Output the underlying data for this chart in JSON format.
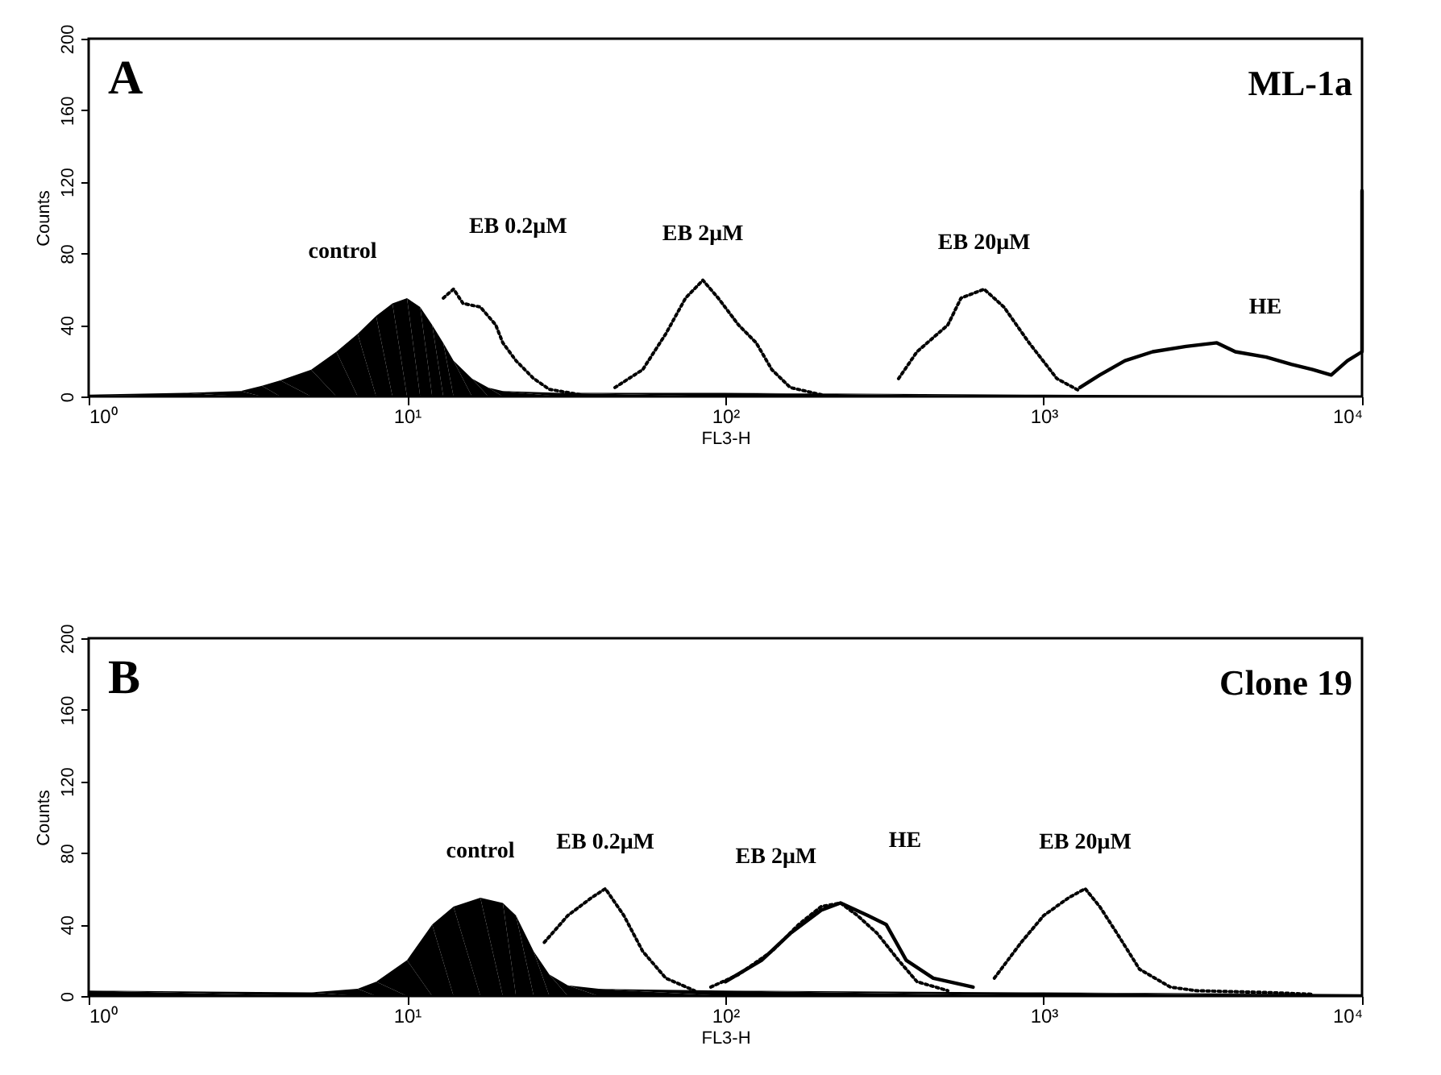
{
  "chart_data": [
    {
      "type": "area",
      "annotations": [
        "A",
        "ML-1a"
      ],
      "xlabel": "FL3-H",
      "ylabel": "Counts",
      "log": "x",
      "grid": false,
      "xlim": [
        1,
        10000
      ],
      "xticks": [
        {
          "value": 1,
          "label": "10⁰"
        },
        {
          "value": 10,
          "label": "10¹"
        },
        {
          "value": 100,
          "label": "10²"
        },
        {
          "value": 1000,
          "label": "10³"
        },
        {
          "value": 10000,
          "label": "10⁴"
        }
      ],
      "ylim": [
        0,
        200
      ],
      "yticks": [
        0,
        40,
        80,
        120,
        160,
        200
      ],
      "series": [
        {
          "name": "control",
          "color": "#000000",
          "x": [
            1,
            2,
            3,
            3.5,
            4,
            5,
            6,
            7,
            8,
            9,
            10,
            11,
            12,
            13,
            14,
            16,
            18,
            20,
            30,
            100,
            1000,
            10000
          ],
          "values": [
            1,
            2,
            3,
            6,
            9,
            15,
            25,
            35,
            45,
            52,
            55,
            50,
            40,
            30,
            20,
            10,
            5,
            3,
            2,
            2,
            1,
            0
          ]
        },
        {
          "name": "EB 0.2μM",
          "type": "line",
          "line_style": "dotted",
          "color": "#000000",
          "x": [
            13,
            14,
            15,
            17,
            19,
            20,
            22,
            25,
            28,
            35
          ],
          "values": [
            55,
            60,
            52,
            50,
            40,
            30,
            20,
            10,
            4,
            1
          ]
        },
        {
          "name": "EB 2μM",
          "type": "line",
          "line_style": "dotted",
          "color": "#000000",
          "x": [
            45,
            55,
            65,
            75,
            85,
            95,
            110,
            125,
            140,
            160,
            200
          ],
          "values": [
            5,
            15,
            35,
            55,
            65,
            55,
            40,
            30,
            15,
            5,
            1
          ]
        },
        {
          "name": "EB 20μM",
          "type": "line",
          "line_style": "dotted",
          "color": "#000000",
          "x": [
            350,
            400,
            500,
            550,
            650,
            750,
            900,
            1100,
            1300
          ],
          "values": [
            10,
            25,
            40,
            55,
            60,
            50,
            30,
            10,
            3
          ]
        },
        {
          "name": "HE",
          "type": "line",
          "line_style": "solid",
          "color": "#000000",
          "x": [
            1300,
            1500,
            1800,
            2200,
            2800,
            3500,
            4000,
            5000,
            6000,
            7000,
            8000,
            9000,
            10000,
            10000
          ],
          "values": [
            5,
            12,
            20,
            25,
            28,
            30,
            25,
            22,
            18,
            15,
            12,
            20,
            25,
            115
          ]
        }
      ]
    },
    {
      "type": "area",
      "annotations": [
        "B",
        "Clone 19"
      ],
      "xlabel": "FL3-H",
      "ylabel": "Counts",
      "log": "x",
      "grid": false,
      "xlim": [
        1,
        10000
      ],
      "xticks": [
        {
          "value": 1,
          "label": "10⁰"
        },
        {
          "value": 10,
          "label": "10¹"
        },
        {
          "value": 100,
          "label": "10²"
        },
        {
          "value": 1000,
          "label": "10³"
        },
        {
          "value": 10000,
          "label": "10⁴"
        }
      ],
      "ylim": [
        0,
        200
      ],
      "yticks": [
        0,
        40,
        80,
        120,
        160,
        200
      ],
      "series": [
        {
          "name": "control",
          "color": "#000000",
          "x": [
            1,
            5,
            7,
            8,
            10,
            12,
            14,
            17,
            20,
            22,
            25,
            28,
            32,
            40,
            100,
            1000,
            10000
          ],
          "values": [
            3,
            2,
            4,
            8,
            20,
            40,
            50,
            55,
            52,
            45,
            25,
            12,
            6,
            4,
            3,
            2,
            1
          ]
        },
        {
          "name": "EB 0.2μM",
          "type": "line",
          "line_style": "dotted",
          "color": "#000000",
          "x": [
            27,
            32,
            38,
            42,
            48,
            55,
            65,
            80
          ],
          "values": [
            30,
            45,
            55,
            60,
            45,
            25,
            10,
            3
          ]
        },
        {
          "name": "EB 2μM",
          "type": "line",
          "line_style": "dotted",
          "color": "#000000",
          "x": [
            90,
            110,
            140,
            170,
            200,
            230,
            260,
            300,
            350,
            400,
            500
          ],
          "values": [
            5,
            12,
            25,
            40,
            50,
            52,
            45,
            35,
            20,
            8,
            3
          ]
        },
        {
          "name": "HE",
          "type": "line",
          "line_style": "solid",
          "color": "#000000",
          "x": [
            100,
            130,
            160,
            200,
            230,
            280,
            320,
            370,
            450,
            600
          ],
          "values": [
            8,
            20,
            35,
            48,
            52,
            45,
            40,
            20,
            10,
            5
          ]
        },
        {
          "name": "EB 20μM",
          "type": "line",
          "line_style": "dotted",
          "color": "#000000",
          "x": [
            700,
            850,
            1000,
            1200,
            1350,
            1500,
            1700,
            2000,
            2500,
            3000,
            5000,
            7000
          ],
          "values": [
            10,
            30,
            45,
            55,
            60,
            50,
            35,
            15,
            5,
            3,
            2,
            1
          ]
        }
      ]
    }
  ]
}
